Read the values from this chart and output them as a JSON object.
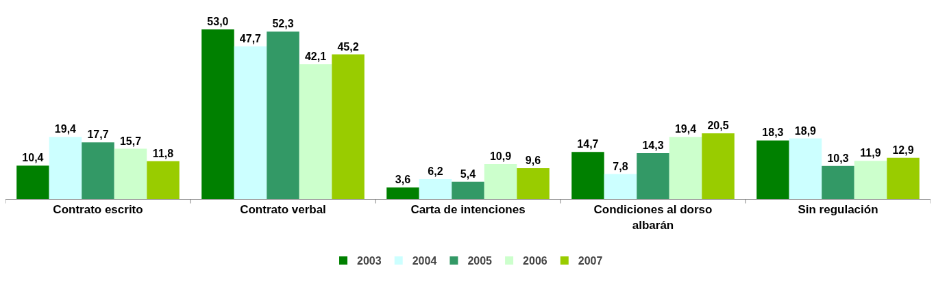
{
  "chart_data": {
    "type": "bar",
    "categories": [
      "Contrato escrito",
      "Contrato verbal",
      "Carta de intenciones",
      "Condiciones al dorso albarán",
      "Sin regulación"
    ],
    "series": [
      {
        "name": "2003",
        "color": "#008000",
        "values": [
          10.4,
          53.0,
          3.6,
          14.7,
          18.3
        ],
        "value_labels": [
          "10,4",
          "53,0",
          "3,6",
          "14,7",
          "18,3"
        ]
      },
      {
        "name": "2004",
        "color": "#ccffff",
        "values": [
          19.4,
          47.7,
          6.2,
          7.8,
          18.9
        ],
        "value_labels": [
          "19,4",
          "47,7",
          "6,2",
          "7,8",
          "18,9"
        ]
      },
      {
        "name": "2005",
        "color": "#339966",
        "values": [
          17.7,
          52.3,
          5.4,
          14.3,
          10.3
        ],
        "value_labels": [
          "17,7",
          "52,3",
          "5,4",
          "14,3",
          "10,3"
        ]
      },
      {
        "name": "2006",
        "color": "#ccffcc",
        "values": [
          15.7,
          42.1,
          10.9,
          19.4,
          11.9
        ],
        "value_labels": [
          "15,7",
          "42,1",
          "10,9",
          "19,4",
          "11,9"
        ]
      },
      {
        "name": "2007",
        "color": "#99cc00",
        "values": [
          11.8,
          45.2,
          9.6,
          20.5,
          12.9
        ],
        "value_labels": [
          "11,8",
          "45,2",
          "9,6",
          "20,5",
          "12,9"
        ]
      }
    ],
    "legend": "bottom"
  }
}
